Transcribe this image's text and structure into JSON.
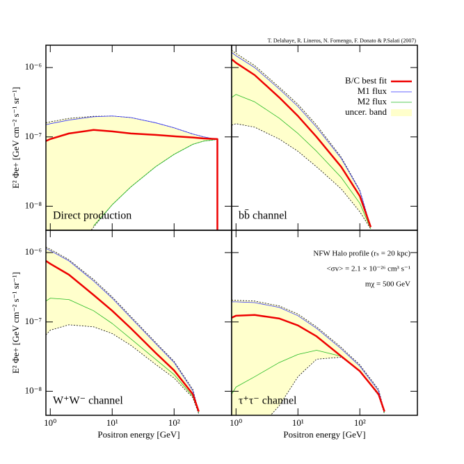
{
  "credit": "T. Delahaye, R. Lineros, N. Fornengo, F. Donato & P.Salati (2007)",
  "chart_data": [
    {
      "type": "line",
      "title": "Direct production",
      "ylabel": "E² Φe+ [GeV cm⁻² s⁻¹ sr⁻¹]",
      "xscale": "log",
      "yscale": "log",
      "xlim": [
        0.85,
        850
      ],
      "ylim": [
        4.5e-09,
        2.1e-06
      ],
      "xticks": [
        1,
        10,
        100
      ],
      "yticks": [
        {
          "value": 1e-08,
          "label": "10⁻⁸"
        },
        {
          "value": 1e-07,
          "label": "10⁻⁷"
        },
        {
          "value": 1e-06,
          "label": "10⁻⁶"
        }
      ],
      "x": [
        0.85,
        1,
        2,
        5,
        10,
        20,
        50,
        100,
        200,
        300,
        500,
        500
      ],
      "series": [
        {
          "kind": "band",
          "color": "#ffffcc",
          "upper": [
            1.6e-07,
            1.65e-07,
            1.85e-07,
            1.98e-07,
            2e-07,
            1.9e-07,
            1.6e-07,
            1.35e-07,
            1.1e-07,
            1e-07,
            9.2e-08,
            null
          ],
          "lower": [
            8e-10,
            1e-09,
            1.8e-09,
            5e-09,
            1.05e-08,
            1.9e-08,
            3.7e-08,
            5.6e-08,
            7.8e-08,
            8.7e-08,
            9.2e-08,
            null
          ]
        },
        {
          "color": "#3333ff",
          "values": [
            1.5e-07,
            1.55e-07,
            1.75e-07,
            1.95e-07,
            2e-07,
            1.9e-07,
            1.6e-07,
            1.35e-07,
            1.1e-07,
            1e-07,
            9.2e-08,
            null
          ]
        },
        {
          "color": "#22bb22",
          "values": [
            null,
            null,
            null,
            5.2e-09,
            1.05e-08,
            1.9e-08,
            3.7e-08,
            5.6e-08,
            7.8e-08,
            8.7e-08,
            9.2e-08,
            null
          ]
        },
        {
          "color": "#ee0000",
          "values": [
            8.7e-08,
            9.3e-08,
            1.12e-07,
            1.26e-07,
            1.2e-07,
            1.12e-07,
            1.07e-07,
            1.02e-07,
            9.8e-08,
            9.5e-08,
            9.3e-08,
            1e-09
          ]
        }
      ]
    },
    {
      "type": "line",
      "title": "bb̄ channel",
      "legend": "upper right",
      "xscale": "log",
      "yscale": "log",
      "xlim": [
        0.85,
        850
      ],
      "ylim": [
        4.5e-09,
        2.1e-06
      ],
      "xticks": [
        1,
        10,
        100
      ],
      "yticks": [
        1e-08,
        1e-07,
        1e-06
      ],
      "x": [
        0.85,
        1,
        2,
        5,
        10,
        20,
        50,
        100,
        150
      ],
      "series": [
        {
          "name": "B/C best fit",
          "color": "#ee0000",
          "values": [
            1.32e-06,
            1.17e-06,
            7.8e-07,
            3.7e-07,
            2e-07,
            1e-07,
            3.7e-08,
            1.4e-08,
            5e-09
          ]
        },
        {
          "name": "M1 flux",
          "color": "#3333ff",
          "values": [
            1.66e-06,
            1.48e-06,
            1e-06,
            4.9e-07,
            2.75e-07,
            1.38e-07,
            4.9e-08,
            1.66e-08,
            5e-09
          ]
        },
        {
          "name": "M2 flux",
          "color": "#22bb22",
          "values": [
            3.7e-07,
            4.1e-07,
            3.2e-07,
            1.86e-07,
            1.12e-07,
            6.2e-08,
            2.6e-08,
            1.1e-08,
            4.7e-09
          ]
        },
        {
          "name": "uncer. band",
          "kind": "band",
          "color": "#ffffcc",
          "upper": [
            1.78e-06,
            1.6e-06,
            1.07e-06,
            5.2e-07,
            2.95e-07,
            1.48e-07,
            5.1e-08,
            1.7e-08,
            5e-09
          ],
          "lower": [
            1.48e-07,
            1.55e-07,
            1.38e-07,
            9.3e-08,
            6.2e-08,
            3.7e-08,
            1.78e-08,
            8.3e-09,
            4.7e-09
          ]
        }
      ]
    },
    {
      "type": "line",
      "title": "W⁺W⁻ channel",
      "ylabel": "E² Φe+ [GeV cm⁻² s⁻¹ sr⁻¹]",
      "xlabel": "Positron energy [GeV]",
      "xscale": "log",
      "yscale": "log",
      "xlim": [
        0.85,
        850
      ],
      "ylim": [
        4.5e-09,
        2.1e-06
      ],
      "xticks": [
        {
          "value": 1,
          "label": "10⁰"
        },
        {
          "value": 10,
          "label": "10¹"
        },
        {
          "value": 100,
          "label": "10²"
        }
      ],
      "yticks": [
        {
          "value": 1e-08,
          "label": "10⁻⁸"
        },
        {
          "value": 1e-07,
          "label": "10⁻⁷"
        },
        {
          "value": 1e-06,
          "label": "10⁻⁶"
        }
      ],
      "x": [
        0.85,
        1,
        2,
        5,
        10,
        20,
        50,
        100,
        200,
        250
      ],
      "series": [
        {
          "kind": "band",
          "color": "#ffffcc",
          "upper": [
            1.2e-06,
            1.12e-06,
            7.9e-07,
            4.1e-07,
            2.3e-07,
            1.2e-07,
            5.1e-08,
            2.7e-08,
            1.07e-08,
            5.1e-09
          ],
          "lower": [
            6.5e-08,
            7.6e-08,
            9.1e-08,
            8.5e-08,
            6.8e-08,
            4.6e-08,
            2.45e-08,
            1.55e-08,
            8.1e-09,
            4.7e-09
          ]
        },
        {
          "color": "#3333ff",
          "values": [
            1.15e-06,
            1.07e-06,
            7.6e-07,
            3.9e-07,
            2.2e-07,
            1.15e-07,
            4.9e-08,
            2.6e-08,
            1.02e-08,
            5.1e-09
          ]
        },
        {
          "color": "#22bb22",
          "values": [
            2e-07,
            2.2e-07,
            2.1e-07,
            1.45e-07,
            9.5e-08,
            5.7e-08,
            2.9e-08,
            1.74e-08,
            8.5e-09,
            4.9e-09
          ]
        },
        {
          "color": "#ee0000",
          "values": [
            7.6e-07,
            6.9e-07,
            4.8e-07,
            2.45e-07,
            1.45e-07,
            8.1e-08,
            3.6e-08,
            2e-08,
            9.1e-09,
            5.1e-09
          ]
        }
      ]
    },
    {
      "type": "line",
      "title": "τ⁺τ⁻ channel",
      "xlabel": "Positron energy [GeV]",
      "annotations": [
        "NFW Halo profile (rₛ = 20 kpc)",
        "<σv> = 2.1 × 10⁻²⁶ cm³ s⁻¹",
        "mχ = 500 GeV"
      ],
      "xscale": "log",
      "yscale": "log",
      "xlim": [
        0.85,
        850
      ],
      "ylim": [
        4.5e-09,
        2.1e-06
      ],
      "xticks": [
        {
          "value": 1,
          "label": "10⁰"
        },
        {
          "value": 10,
          "label": "10¹"
        },
        {
          "value": 100,
          "label": "10²"
        }
      ],
      "yticks": [
        1e-08,
        1e-07,
        1e-06
      ],
      "x": [
        0.85,
        1,
        2,
        5,
        10,
        20,
        50,
        100,
        200,
        250
      ],
      "series": [
        {
          "kind": "band",
          "color": "#ffffcc",
          "upper": [
            2.05e-07,
            2.05e-07,
            2e-07,
            1.7e-07,
            1.3e-07,
            8.5e-08,
            4.3e-08,
            2.4e-08,
            1.07e-08,
            5.1e-09
          ],
          "lower": [
            1e-09,
            1.2e-09,
            2.5e-09,
            6.2e-09,
            1.62e-08,
            2.9e-08,
            3.1e-08,
            1.95e-08,
            8.7e-09,
            4.7e-09
          ]
        },
        {
          "color": "#3333ff",
          "values": [
            1.95e-07,
            1.95e-07,
            1.9e-07,
            1.62e-07,
            1.23e-07,
            8.1e-08,
            4.1e-08,
            2.3e-08,
            1.02e-08,
            5.1e-09
          ]
        },
        {
          "color": "#22bb22",
          "values": [
            9.1e-09,
            1.15e-08,
            1.62e-08,
            2.6e-08,
            3.4e-08,
            3.9e-08,
            3.2e-08,
            2e-08,
            9.1e-09,
            4.9e-09
          ]
        },
        {
          "color": "#ee0000",
          "values": [
            1.15e-07,
            1.23e-07,
            1.26e-07,
            1.12e-07,
            8.9e-08,
            6.2e-08,
            3.2e-08,
            1.95e-08,
            9.1e-09,
            5.1e-09
          ]
        }
      ]
    }
  ]
}
